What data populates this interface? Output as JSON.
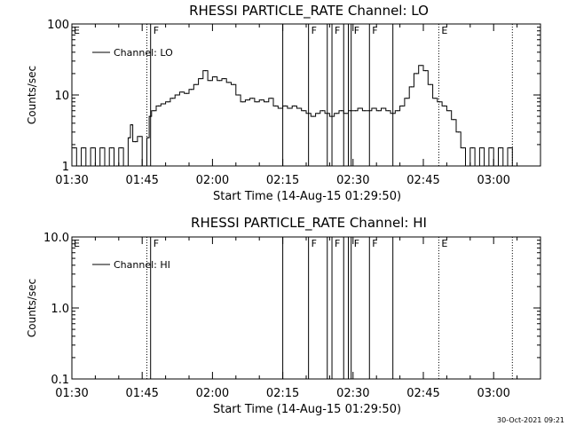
{
  "chart_data": [
    {
      "type": "line",
      "title": "RHESSI PARTICLE_RATE Channel: LO",
      "xlabel": "Start Time (14-Aug-15 01:29:50)",
      "ylabel": "Counts/sec",
      "scale": "log",
      "xlim": [
        "01:30",
        "03:10"
      ],
      "ylim": [
        1,
        100
      ],
      "x_ticks": [
        "01:30",
        "01:45",
        "02:00",
        "02:15",
        "02:30",
        "02:45",
        "03:00"
      ],
      "y_ticks": [
        "1",
        "10",
        "100"
      ],
      "legend": "top-left",
      "grid": false,
      "series": [
        {
          "name": "Channel: LO",
          "points": [
            [
              "01:30",
              1.8
            ],
            [
              "01:31",
              1
            ],
            [
              "01:32",
              1.8
            ],
            [
              "01:33",
              1
            ],
            [
              "01:34",
              1.8
            ],
            [
              "01:35",
              1
            ],
            [
              "01:36",
              1.8
            ],
            [
              "01:37",
              1
            ],
            [
              "01:38",
              1.8
            ],
            [
              "01:39",
              1
            ],
            [
              "01:40",
              1.8
            ],
            [
              "01:41",
              1
            ],
            [
              "01:42",
              2.5
            ],
            [
              "01:42.5",
              3.8
            ],
            [
              "01:43",
              2.2
            ],
            [
              "01:44",
              2.6
            ],
            [
              "01:45",
              1
            ],
            [
              "01:46",
              2.5
            ],
            [
              "01:46.5",
              5
            ],
            [
              "01:47",
              6
            ],
            [
              "01:48",
              7
            ],
            [
              "01:49",
              7.5
            ],
            [
              "01:50",
              8
            ],
            [
              "01:51",
              9
            ],
            [
              "01:52",
              10
            ],
            [
              "01:53",
              11
            ],
            [
              "01:54",
              10.5
            ],
            [
              "01:55",
              12
            ],
            [
              "01:56",
              14
            ],
            [
              "01:57",
              17
            ],
            [
              "01:58",
              22
            ],
            [
              "01:59",
              16
            ],
            [
              "02:00",
              18
            ],
            [
              "02:01",
              16
            ],
            [
              "02:02",
              17
            ],
            [
              "02:03",
              15
            ],
            [
              "02:04",
              14
            ],
            [
              "02:05",
              10
            ],
            [
              "02:06",
              8
            ],
            [
              "02:07",
              8.5
            ],
            [
              "02:08",
              9
            ],
            [
              "02:09",
              8
            ],
            [
              "02:10",
              8.5
            ],
            [
              "02:11",
              8
            ],
            [
              "02:12",
              9
            ],
            [
              "02:13",
              7
            ],
            [
              "02:14",
              6.5
            ],
            [
              "02:15",
              7
            ],
            [
              "02:16",
              6.5
            ],
            [
              "02:17",
              7
            ],
            [
              "02:18",
              6.5
            ],
            [
              "02:19",
              6
            ],
            [
              "02:20",
              5.5
            ],
            [
              "02:21",
              5
            ],
            [
              "02:22",
              5.5
            ],
            [
              "02:23",
              6
            ],
            [
              "02:24",
              5.5
            ],
            [
              "02:25",
              5
            ],
            [
              "02:26",
              5.5
            ],
            [
              "02:27",
              6
            ],
            [
              "02:28",
              5.5
            ],
            [
              "02:29",
              6
            ],
            [
              "02:30",
              6
            ],
            [
              "02:31",
              6.5
            ],
            [
              "02:32",
              6
            ],
            [
              "02:33",
              6
            ],
            [
              "02:34",
              6.5
            ],
            [
              "02:35",
              6
            ],
            [
              "02:36",
              6.5
            ],
            [
              "02:37",
              6
            ],
            [
              "02:38",
              5.5
            ],
            [
              "02:39",
              6
            ],
            [
              "02:40",
              7
            ],
            [
              "02:41",
              9
            ],
            [
              "02:42",
              13
            ],
            [
              "02:43",
              20
            ],
            [
              "02:44",
              26
            ],
            [
              "02:45",
              22
            ],
            [
              "02:46",
              14
            ],
            [
              "02:47",
              9
            ],
            [
              "02:48",
              8
            ],
            [
              "02:49",
              7
            ],
            [
              "02:50",
              6
            ],
            [
              "02:51",
              4.5
            ],
            [
              "02:52",
              3
            ],
            [
              "02:53",
              1.8
            ],
            [
              "02:54",
              1
            ],
            [
              "02:55",
              1.8
            ],
            [
              "02:56",
              1
            ],
            [
              "02:57",
              1.8
            ],
            [
              "02:58",
              1
            ],
            [
              "02:59",
              1.8
            ],
            [
              "03:00",
              1
            ],
            [
              "03:01",
              1.8
            ],
            [
              "03:02",
              1
            ],
            [
              "03:03",
              1.8
            ],
            [
              "03:04",
              1
            ]
          ]
        }
      ],
      "markers": [
        {
          "time": "01:46",
          "style": "dotted",
          "label": ""
        },
        {
          "time": "01:46.8",
          "style": "solid",
          "label": "F"
        },
        {
          "time": "02:15",
          "style": "solid",
          "label": ""
        },
        {
          "time": "02:20.5",
          "style": "solid",
          "label": "F"
        },
        {
          "time": "02:24.5",
          "style": "solid",
          "label": ""
        },
        {
          "time": "02:25.5",
          "style": "solid",
          "label": "F"
        },
        {
          "time": "02:28",
          "style": "solid",
          "label": ""
        },
        {
          "time": "02:29",
          "style": "solid",
          "label": ""
        },
        {
          "time": "02:29.6",
          "style": "solid",
          "label": "F"
        },
        {
          "time": "02:33.5",
          "style": "solid",
          "label": "F"
        },
        {
          "time": "02:38.5",
          "style": "solid",
          "label": ""
        },
        {
          "time": "02:48.3",
          "style": "dotted",
          "label": "E"
        },
        {
          "time": "03:04",
          "style": "dotted",
          "label": ""
        }
      ],
      "edge_label": "E"
    },
    {
      "type": "line",
      "title": "RHESSI PARTICLE_RATE Channel: HI",
      "xlabel": "Start Time (14-Aug-15 01:29:50)",
      "ylabel": "Counts/sec",
      "scale": "log",
      "xlim": [
        "01:30",
        "03:10"
      ],
      "ylim": [
        0.1,
        10
      ],
      "x_ticks": [
        "01:30",
        "01:45",
        "02:00",
        "02:15",
        "02:30",
        "02:45",
        "03:00"
      ],
      "y_ticks": [
        "0.1",
        "1.0",
        "10.0"
      ],
      "legend": "top-left",
      "grid": false,
      "series": [
        {
          "name": "Channel: HI",
          "points": []
        }
      ],
      "markers": [
        {
          "time": "01:46",
          "style": "dotted",
          "label": ""
        },
        {
          "time": "01:46.8",
          "style": "solid",
          "label": "F"
        },
        {
          "time": "02:15",
          "style": "solid",
          "label": ""
        },
        {
          "time": "02:20.5",
          "style": "solid",
          "label": "F"
        },
        {
          "time": "02:24.5",
          "style": "solid",
          "label": ""
        },
        {
          "time": "02:25.5",
          "style": "solid",
          "label": "F"
        },
        {
          "time": "02:28",
          "style": "solid",
          "label": ""
        },
        {
          "time": "02:29",
          "style": "solid",
          "label": ""
        },
        {
          "time": "02:29.6",
          "style": "solid",
          "label": "F"
        },
        {
          "time": "02:33.5",
          "style": "solid",
          "label": "F"
        },
        {
          "time": "02:38.5",
          "style": "solid",
          "label": ""
        },
        {
          "time": "02:48.3",
          "style": "dotted",
          "label": "E"
        },
        {
          "time": "03:04",
          "style": "dotted",
          "label": ""
        }
      ],
      "edge_label": "E"
    }
  ],
  "footer": {
    "timestamp": "30-Oct-2021 09:21"
  }
}
